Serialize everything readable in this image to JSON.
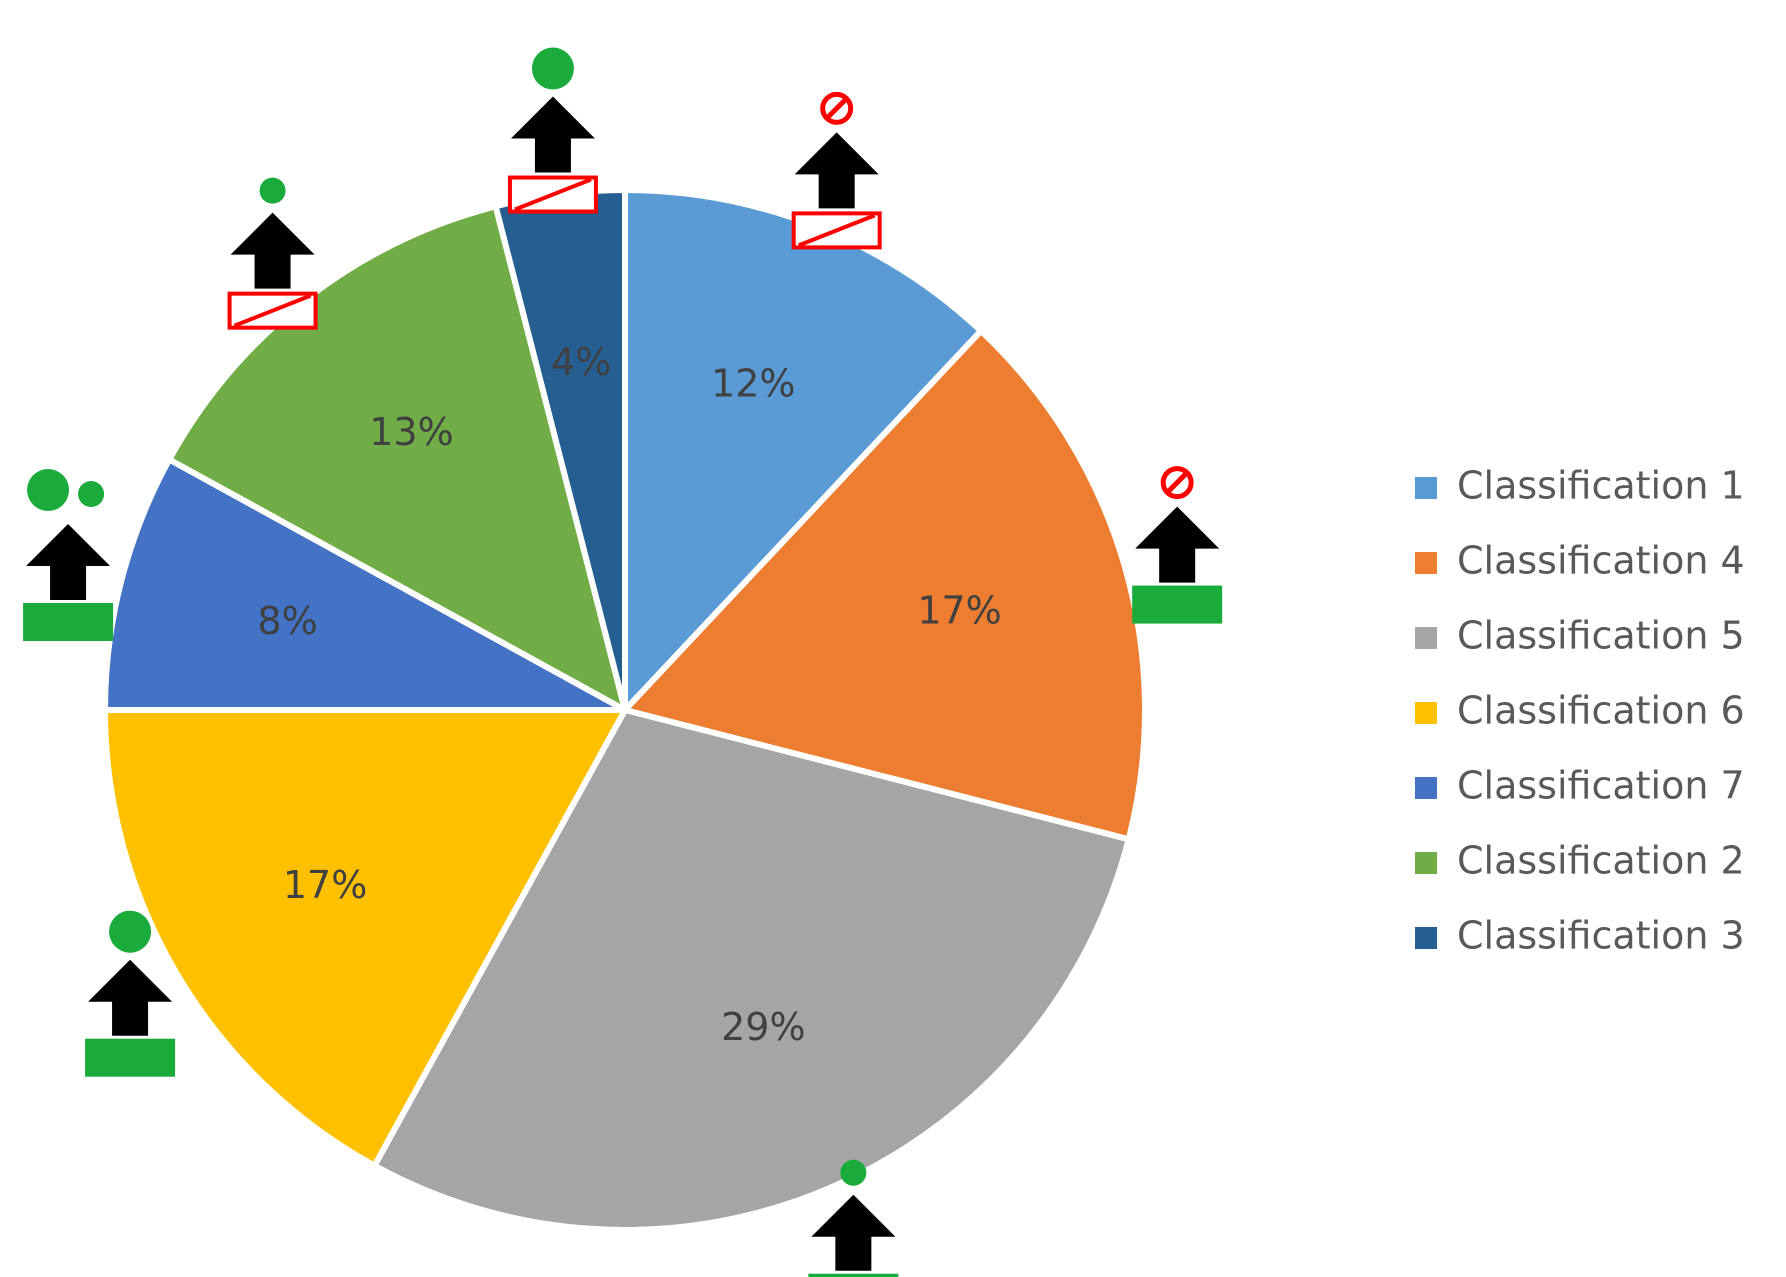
{
  "chart_data": {
    "type": "pie",
    "start_angle_deg": 0,
    "direction": "clockwise",
    "slices": [
      {
        "name": "Classification 1",
        "value": 12,
        "label": "12%",
        "color": "#5B9BD5",
        "marker": {
          "dots": "red-no-sign",
          "base": "red-crossed-box"
        }
      },
      {
        "name": "Classification 4",
        "value": 17,
        "label": "17%",
        "color": "#ED7D31",
        "marker": {
          "dots": "red-no-sign",
          "base": "green-bar"
        }
      },
      {
        "name": "Classification 5",
        "value": 29,
        "label": "29%",
        "color": "#A5A5A5",
        "marker": {
          "dots": "small-green-dot",
          "base": "green-bar"
        }
      },
      {
        "name": "Classification 6",
        "value": 17,
        "label": "17%",
        "color": "#FFC000",
        "marker": {
          "dots": "large-green-dot",
          "base": "green-bar"
        }
      },
      {
        "name": "Classification 7",
        "value": 8,
        "label": "8%",
        "color": "#4472C4",
        "marker": {
          "dots": "two-green-dots",
          "base": "green-bar"
        }
      },
      {
        "name": "Classification 2",
        "value": 13,
        "label": "13%",
        "color": "#70AD47",
        "marker": {
          "dots": "small-green-dot",
          "base": "red-crossed-box"
        }
      },
      {
        "name": "Classification 3",
        "value": 4,
        "label": "4%",
        "color": "#255E91",
        "marker": {
          "dots": "large-green-dot",
          "base": "red-crossed-box"
        }
      }
    ],
    "legend": {
      "placement": "right",
      "entries": [
        "Classification 1",
        "Classification 4",
        "Classification 5",
        "Classification 6",
        "Classification 7",
        "Classification 2",
        "Classification 3"
      ]
    },
    "icons": {
      "arrow": "black-up-arrow-icon",
      "green_dot": "green-dot-icon",
      "no_sign": "red-no-sign-icon",
      "crossed_box": "red-crossed-box-icon",
      "green_bar": "green-bar-icon"
    },
    "colors": {
      "arrow": "#000000",
      "green": "#1AAB3A",
      "red": "#FF0000",
      "slice_border": "#FFFFFF",
      "label_text": "#404040",
      "legend_text": "#595959"
    }
  }
}
